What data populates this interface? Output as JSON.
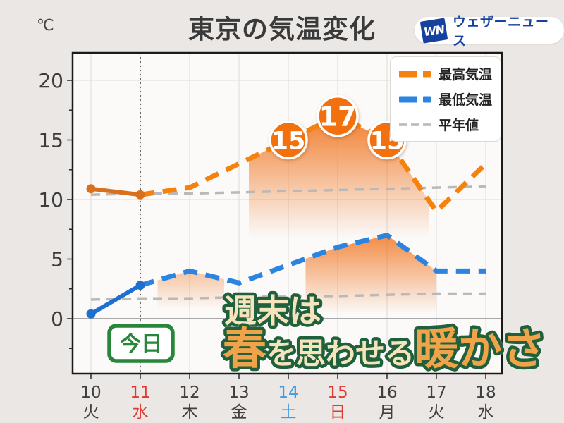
{
  "header": {
    "unit": "℃",
    "title": "東京の気温変化",
    "logo": {
      "mark": "WN",
      "text": "ウェザーニュース"
    }
  },
  "legend": {
    "items": [
      {
        "label": "最高気温",
        "color": "#f5820c",
        "style": "bold-dash"
      },
      {
        "label": "最低気温",
        "color": "#2b85e0",
        "style": "bold-dash"
      },
      {
        "label": "平年値",
        "color": "#b9b9b9",
        "style": "thin-dash"
      }
    ]
  },
  "annotations": {
    "today_label": "今日",
    "headline": {
      "line1": "週末は",
      "line2": [
        {
          "text": "春",
          "emphasis": true
        },
        {
          "text": "を思わせる",
          "emphasis": false
        },
        {
          "text": "暖かさ",
          "emphasis": true
        }
      ]
    }
  },
  "chart_data": {
    "type": "line",
    "title": "東京の気温変化",
    "unit": "℃",
    "x_days": [
      "10",
      "11",
      "12",
      "13",
      "14",
      "15",
      "16",
      "17",
      "18"
    ],
    "x_weekdays": [
      "火",
      "水",
      "木",
      "金",
      "土",
      "日",
      "月",
      "火",
      "水"
    ],
    "x_label_colors": [
      "dark",
      "red",
      "dark",
      "dark",
      "blue",
      "red",
      "dark",
      "dark",
      "dark"
    ],
    "today_day_index": 1,
    "yticks": [
      0,
      5,
      10,
      15,
      20
    ],
    "ylim_shown": [
      -5,
      22
    ],
    "grid": true,
    "legend_position": "top-right",
    "series": [
      {
        "name": "最高気温",
        "role": "max",
        "observed_days": [
          "10",
          "11"
        ],
        "observed": [
          10.9,
          10.4
        ],
        "forecast_days": [
          "11",
          "12",
          "13",
          "14",
          "15",
          "16",
          "17",
          "18"
        ],
        "forecast": [
          10.4,
          11,
          13,
          15,
          17,
          15,
          9,
          13
        ]
      },
      {
        "name": "最低気温",
        "role": "min",
        "observed_days": [
          "10",
          "11"
        ],
        "observed": [
          0.4,
          2.8
        ],
        "forecast_days": [
          "11",
          "12",
          "13",
          "14",
          "15",
          "16",
          "17",
          "18"
        ],
        "forecast": [
          2.8,
          4,
          3,
          4.5,
          6,
          7,
          4,
          4
        ]
      },
      {
        "name": "平年値(最高)",
        "role": "normal-max",
        "values": [
          10.4,
          10.5,
          10.5,
          10.6,
          10.7,
          10.8,
          10.9,
          11.0,
          11.1
        ]
      },
      {
        "name": "平年値(最低)",
        "role": "normal-min",
        "values": [
          1.6,
          1.7,
          1.7,
          1.8,
          1.9,
          1.9,
          2.0,
          2.1,
          2.1
        ]
      }
    ],
    "point_labels": [
      {
        "day": "14",
        "value": 15
      },
      {
        "day": "15",
        "value": 17
      },
      {
        "day": "16",
        "value": 15
      }
    ]
  },
  "colors": {
    "background": "#eae7e4",
    "plot_background": "#fbfaf9",
    "grid": "#dcdcdc",
    "zero_line": "#a8a8a8",
    "axis": "#1a1a1a",
    "max_forecast": "#f5820c",
    "max_observed": "#d9701d",
    "min_forecast": "#2b85e0",
    "min_observed": "#1d6fd1",
    "normal": "#b9b9b9",
    "marker_fill": "#f2700d",
    "x_dark": "#3f3f3f",
    "x_red": "#e0392f",
    "x_blue": "#419be0",
    "badge_green": "#27863a",
    "headline_cream": "#f6e4bd",
    "headline_orange": "#f0a44a",
    "headline_outline": "#20603c",
    "logo_blue": "#16419f",
    "warm_fill": "#f07018"
  }
}
